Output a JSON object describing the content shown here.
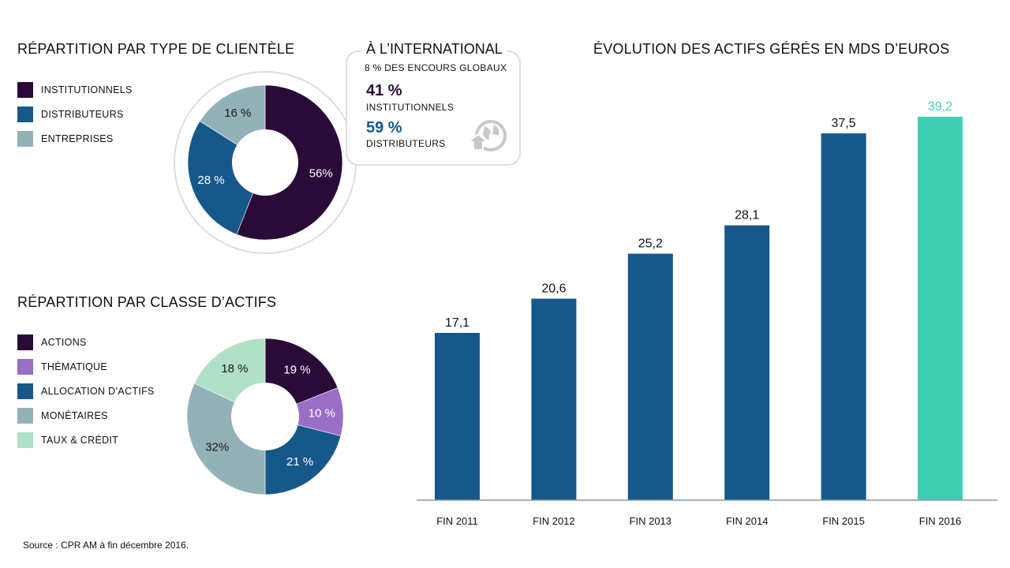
{
  "clientele": {
    "title": "RÉPARTITION PAR TYPE DE CLIENTÈLE",
    "legend": [
      {
        "label": "INSTITUTIONNELS",
        "color": "#2a0a36"
      },
      {
        "label": "DISTRIBUTEURS",
        "color": "#17588a"
      },
      {
        "label": "ENTREPRISES",
        "color": "#93b2b8"
      }
    ]
  },
  "international": {
    "title": "À L’INTERNATIONAL",
    "subtitle": "8 % DES ENCOURS GLOBAUX",
    "items": [
      {
        "pct": "41 %",
        "label": "INSTITUTIONNELS",
        "color": "#2a0a36"
      },
      {
        "pct": "59 %",
        "label": "DISTRIBUTEURS",
        "color": "#17588a"
      }
    ],
    "icon": "globe-arrow-icon"
  },
  "asset_class": {
    "title": "RÉPARTITION PAR CLASSE D’ACTIFS",
    "legend": [
      {
        "label": "ACTIONS",
        "color": "#2a0a36"
      },
      {
        "label": "THÉMATIQUE",
        "color": "#9a6ec4"
      },
      {
        "label": "ALLOCATION D’ACTIFS",
        "color": "#17588a"
      },
      {
        "label": "MONÉTAIRES",
        "color": "#93b2b8"
      },
      {
        "label": "TAUX & CRÉDIT",
        "color": "#b0e0c6"
      }
    ]
  },
  "bar_section": {
    "title": "ÉVOLUTION DES ACTIFS GÉRÉS EN MDS D’EUROS"
  },
  "source": "Source : CPR AM à fin décembre 2016.",
  "chart_data": [
    {
      "type": "pie",
      "title": "RÉPARTITION PAR TYPE DE CLIENTÈLE",
      "categories": [
        "INSTITUTIONNELS",
        "DISTRIBUTEURS",
        "ENTREPRISES"
      ],
      "values": [
        56,
        28,
        16
      ],
      "labels": [
        "56%",
        "28 %",
        "16 %"
      ],
      "colors": [
        "#2a0a36",
        "#17588a",
        "#93b2b8"
      ]
    },
    {
      "type": "pie",
      "title": "RÉPARTITION PAR CLASSE D’ACTIFS",
      "categories": [
        "ACTIONS",
        "THÉMATIQUE",
        "ALLOCATION D’ACTIFS",
        "MONÉTAIRES",
        "TAUX & CRÉDIT"
      ],
      "values": [
        19,
        10,
        21,
        32,
        18
      ],
      "labels": [
        "19 %",
        "10 %",
        "21 %",
        "32%",
        "18 %"
      ],
      "colors": [
        "#2a0a36",
        "#9a6ec4",
        "#17588a",
        "#93b2b8",
        "#b0e0c6"
      ]
    },
    {
      "type": "bar",
      "title": "ÉVOLUTION DES ACTIFS GÉRÉS EN MDS D’EUROS",
      "categories": [
        "FIN 2011",
        "FIN 2012",
        "FIN 2013",
        "FIN 2014",
        "FIN 2015",
        "FIN 2016"
      ],
      "values": [
        17.1,
        20.6,
        25.2,
        28.1,
        37.5,
        39.2
      ],
      "value_labels": [
        "17,1",
        "20,6",
        "25,2",
        "28,1",
        "37,5",
        "39,2"
      ],
      "colors": [
        "#17588a",
        "#17588a",
        "#17588a",
        "#17588a",
        "#17588a",
        "#3ecfb2"
      ],
      "ylim": [
        0,
        39.2
      ]
    }
  ]
}
